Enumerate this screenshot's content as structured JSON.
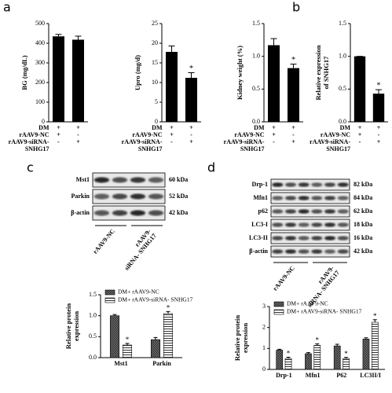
{
  "panel_labels": [
    "a",
    "b",
    "c",
    "d"
  ],
  "chart_data": [
    {
      "type": "bar",
      "y_label": [
        "BG (mg/dL)"
      ],
      "values": [
        435,
        418
      ],
      "errors": [
        10,
        18
      ],
      "color": "#000000",
      "ylim": [
        0,
        500
      ],
      "yticks": [
        0,
        100,
        200,
        300,
        400,
        500
      ],
      "conditions": [
        {
          "label": [
            "DM"
          ],
          "marks": [
            "+",
            "+"
          ]
        },
        {
          "label": [
            "rAAV9-NC"
          ],
          "marks": [
            "+",
            "-"
          ]
        },
        {
          "label": [
            "rAAV9-siRNA-",
            "SNHG17"
          ],
          "marks": [
            "-",
            "+"
          ]
        }
      ]
    },
    {
      "type": "bar",
      "y_label": [
        "Upro (mg/d)"
      ],
      "values": [
        17.8,
        11.2
      ],
      "errors": [
        1.5,
        1.3
      ],
      "color": "#000000",
      "annotations": [
        null,
        "*"
      ],
      "ylim": [
        0,
        25
      ],
      "yticks": [
        0,
        5,
        10,
        15,
        20,
        25
      ],
      "conditions": [
        {
          "label": [
            "DM"
          ],
          "marks": [
            "+",
            "+"
          ]
        },
        {
          "label": [
            "rAAV9-NC"
          ],
          "marks": [
            "+",
            "-"
          ]
        },
        {
          "label": [
            "rAAV9-siRNA-",
            "SNHG17"
          ],
          "marks": [
            "-",
            "+"
          ]
        }
      ]
    },
    {
      "type": "bar",
      "y_label": [
        "Kidney weight (%)"
      ],
      "values": [
        1.17,
        0.82
      ],
      "errors": [
        0.1,
        0.06
      ],
      "color": "#000000",
      "annotations": [
        null,
        "*"
      ],
      "ylim": [
        0,
        1.5
      ],
      "yticks": [
        {
          "value": 0,
          "label": "0.0"
        },
        {
          "value": 0.5,
          "label": "0.5"
        },
        {
          "value": 1,
          "label": "1.0"
        },
        {
          "value": 1.5,
          "label": "1.5"
        }
      ],
      "conditions": [
        {
          "label": [
            "DM"
          ],
          "marks": [
            "+",
            "+"
          ]
        },
        {
          "label": [
            "rAAV9-NC"
          ],
          "marks": [
            "+",
            "-"
          ]
        },
        {
          "label": [
            "rAAV9-siRNA-",
            "SNHG17"
          ],
          "marks": [
            "-",
            "+"
          ]
        }
      ]
    },
    {
      "type": "bar",
      "y_label": [
        "Relative expression",
        "of SNHG17"
      ],
      "values": [
        1.0,
        0.43
      ],
      "errors": [
        0,
        0.06
      ],
      "color": "#000000",
      "annotations": [
        null,
        "*"
      ],
      "ylim": [
        0,
        1.5
      ],
      "yticks": [
        {
          "value": 0,
          "label": "0.0"
        },
        {
          "value": 0.5,
          "label": "0.5"
        },
        {
          "value": 1,
          "label": "1.0"
        },
        {
          "value": 1.5,
          "label": "1.5"
        }
      ],
      "conditions": [
        {
          "label": [
            "DM"
          ],
          "marks": [
            "+",
            "+"
          ]
        },
        {
          "label": [
            "rAAV9-NC"
          ],
          "marks": [
            "+",
            "-"
          ]
        },
        {
          "label": [
            "rAAV9-siRNA-",
            "SNHG17"
          ],
          "marks": [
            "-",
            "+"
          ]
        }
      ]
    },
    {
      "type": "grouped_bar",
      "y_label": [
        "Relative protein",
        "expression"
      ],
      "categories": [
        "Mst1",
        "Parkin"
      ],
      "series": [
        {
          "name": "DM+ rAAV9-NC",
          "color": "#555555",
          "hatch": "cross",
          "values": [
            1.0,
            0.43
          ],
          "errors": [
            0.03,
            0.05
          ]
        },
        {
          "name": "DM+ rAAV9-siRNA- SNHG17",
          "color": "#ffffff",
          "hatch": "horizontal",
          "values": [
            0.3,
            1.05
          ],
          "errors": [
            0.04,
            0.05
          ],
          "annotations": [
            "*",
            "*"
          ]
        }
      ],
      "ylim": [
        0,
        1.5
      ],
      "yticks": [
        {
          "value": 0,
          "label": "0.0"
        },
        {
          "value": 0.5,
          "label": "0.5"
        },
        {
          "value": 1,
          "label": "1.0"
        },
        {
          "value": 1.5,
          "label": "1.5"
        }
      ]
    },
    {
      "type": "grouped_bar",
      "y_label": [
        "Relative protein",
        "expression"
      ],
      "categories": [
        "Drp-1",
        "Mfn1",
        "P62",
        "LC3II/I"
      ],
      "series": [
        {
          "name": "DM+ rAAV9-NC",
          "color": "#555555",
          "hatch": "cross",
          "values": [
            0.92,
            0.75,
            1.12,
            1.45
          ],
          "errors": [
            0.04,
            0.05,
            0.08,
            0.06
          ]
        },
        {
          "name": "DM+ rAAV9-siRNA- SNHG17",
          "color": "#ffffff",
          "hatch": "horizontal",
          "values": [
            0.52,
            1.15,
            0.52,
            2.25
          ],
          "errors": [
            0.06,
            0.07,
            0.05,
            0.12
          ],
          "annotations": [
            "*",
            "*",
            "*",
            "*"
          ]
        }
      ],
      "ylim": [
        0,
        3
      ],
      "yticks": [
        0,
        1,
        2,
        3
      ]
    }
  ],
  "blots": [
    {
      "rows": [
        {
          "protein": "Mst1",
          "size": "60 kDa"
        },
        {
          "protein": "Parkin",
          "size": "52 kDa"
        },
        {
          "protein": "β-actin",
          "size": "42 kDa"
        }
      ],
      "lane_labels": [
        [
          "rAAV9-NC"
        ],
        [
          "rAAV9-",
          "siRNA- SNHG17"
        ]
      ]
    },
    {
      "rows": [
        {
          "protein": "Drp-1",
          "size": "82 kDa"
        },
        {
          "protein": "Mfn1",
          "size": "84 kDa"
        },
        {
          "protein": "p62",
          "size": "62 kDa"
        },
        {
          "protein": "LC3-I",
          "size": "18 kDa"
        },
        {
          "protein": "LC3-II",
          "size": "16 kDa"
        },
        {
          "protein": "β-actin",
          "size": "42 kDa"
        }
      ],
      "lane_labels": [
        [
          "rAAV9-NC"
        ],
        [
          "rAAV9-",
          "siRNA- SNHG17"
        ]
      ]
    }
  ]
}
